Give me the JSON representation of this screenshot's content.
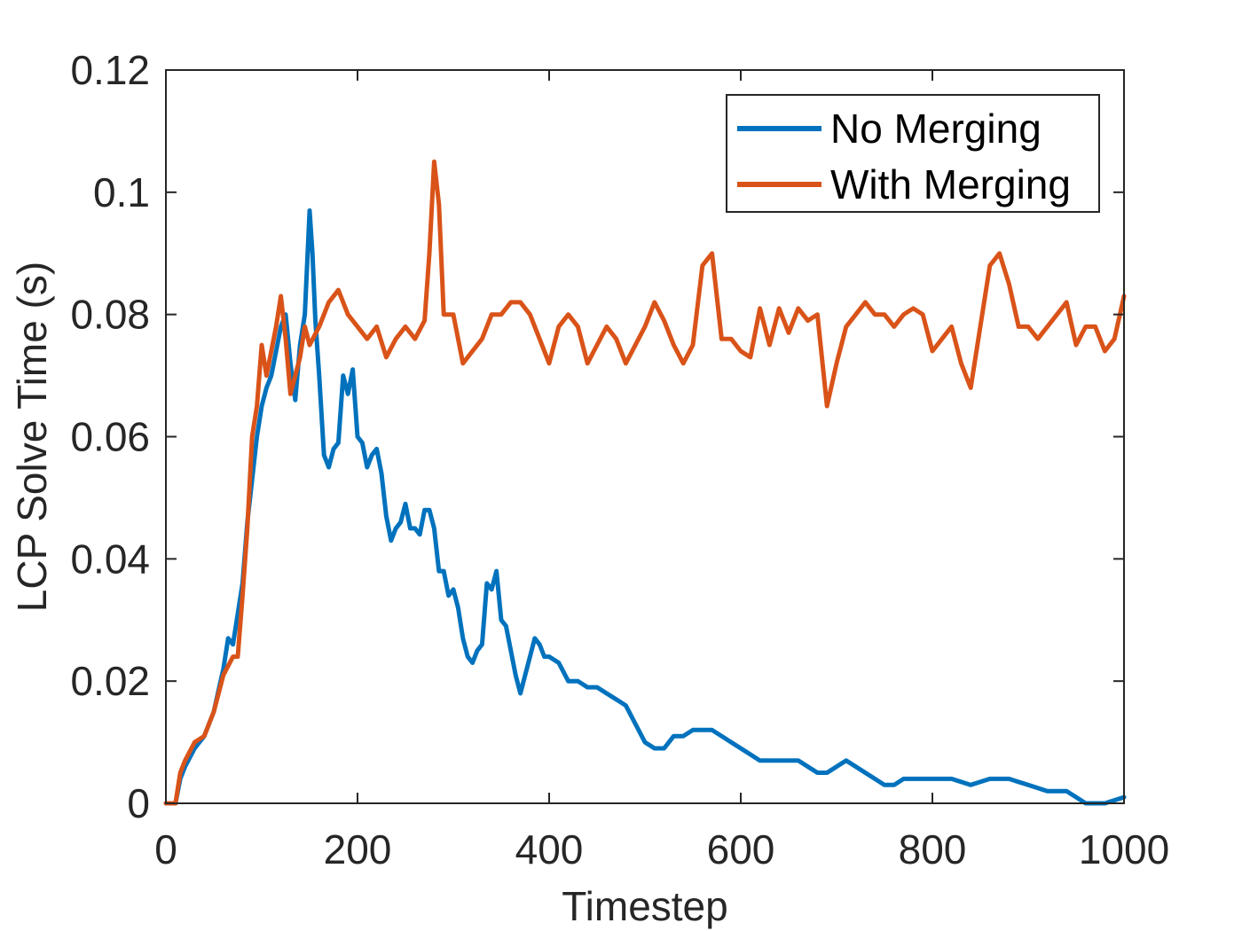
{
  "chart_data": {
    "type": "line",
    "xlabel": "Timestep",
    "ylabel": "LCP Solve Time (s)",
    "xlim": [
      0,
      1000
    ],
    "ylim": [
      0,
      0.12
    ],
    "xticks": [
      "0",
      "200",
      "400",
      "600",
      "800",
      "1000"
    ],
    "yticks": [
      "0",
      "0.02",
      "0.04",
      "0.06",
      "0.08",
      "0.1",
      "0.12"
    ],
    "grid": false,
    "legend_position": "top-right",
    "series": [
      {
        "name": "No Merging",
        "color": "#0072BD",
        "x": [
          0,
          10,
          15,
          20,
          30,
          40,
          50,
          60,
          65,
          70,
          75,
          80,
          85,
          90,
          95,
          100,
          105,
          110,
          115,
          120,
          125,
          130,
          135,
          140,
          145,
          150,
          153,
          156,
          160,
          165,
          170,
          175,
          180,
          185,
          190,
          195,
          200,
          205,
          210,
          215,
          220,
          225,
          230,
          235,
          240,
          245,
          250,
          255,
          260,
          265,
          270,
          275,
          280,
          285,
          290,
          295,
          300,
          305,
          310,
          315,
          320,
          325,
          330,
          335,
          340,
          345,
          350,
          355,
          360,
          365,
          370,
          375,
          380,
          385,
          390,
          395,
          400,
          410,
          420,
          430,
          440,
          450,
          460,
          470,
          480,
          490,
          500,
          510,
          520,
          530,
          540,
          550,
          560,
          570,
          580,
          590,
          600,
          610,
          620,
          630,
          640,
          650,
          660,
          670,
          680,
          690,
          700,
          710,
          720,
          730,
          740,
          750,
          760,
          770,
          780,
          790,
          800,
          820,
          840,
          860,
          880,
          900,
          920,
          940,
          960,
          980,
          1000
        ],
        "y": [
          0,
          0,
          0.004,
          0.006,
          0.009,
          0.011,
          0.015,
          0.022,
          0.027,
          0.026,
          0.031,
          0.036,
          0.046,
          0.053,
          0.06,
          0.065,
          0.068,
          0.07,
          0.074,
          0.078,
          0.08,
          0.072,
          0.066,
          0.075,
          0.08,
          0.097,
          0.09,
          0.079,
          0.07,
          0.057,
          0.055,
          0.058,
          0.059,
          0.07,
          0.067,
          0.071,
          0.06,
          0.059,
          0.055,
          0.057,
          0.058,
          0.054,
          0.047,
          0.043,
          0.045,
          0.046,
          0.049,
          0.045,
          0.045,
          0.044,
          0.048,
          0.048,
          0.045,
          0.038,
          0.038,
          0.034,
          0.035,
          0.032,
          0.027,
          0.024,
          0.023,
          0.025,
          0.026,
          0.036,
          0.035,
          0.038,
          0.03,
          0.029,
          0.025,
          0.021,
          0.018,
          0.021,
          0.024,
          0.027,
          0.026,
          0.024,
          0.024,
          0.023,
          0.02,
          0.02,
          0.019,
          0.019,
          0.018,
          0.017,
          0.016,
          0.013,
          0.01,
          0.009,
          0.009,
          0.011,
          0.011,
          0.012,
          0.012,
          0.012,
          0.011,
          0.01,
          0.009,
          0.008,
          0.007,
          0.007,
          0.007,
          0.007,
          0.007,
          0.006,
          0.005,
          0.005,
          0.006,
          0.007,
          0.006,
          0.005,
          0.004,
          0.003,
          0.003,
          0.004,
          0.004,
          0.004,
          0.004,
          0.004,
          0.003,
          0.004,
          0.004,
          0.003,
          0.002,
          0.002,
          0,
          0,
          0.001
        ]
      },
      {
        "name": "With Merging",
        "color": "#D95319",
        "x": [
          0,
          10,
          15,
          20,
          30,
          40,
          50,
          60,
          70,
          75,
          80,
          85,
          90,
          95,
          100,
          105,
          110,
          115,
          120,
          125,
          130,
          135,
          140,
          145,
          150,
          160,
          170,
          180,
          190,
          200,
          210,
          220,
          230,
          240,
          250,
          260,
          270,
          275,
          280,
          285,
          290,
          300,
          310,
          320,
          330,
          340,
          350,
          360,
          370,
          380,
          390,
          400,
          410,
          420,
          430,
          440,
          450,
          460,
          470,
          480,
          490,
          500,
          510,
          520,
          530,
          540,
          550,
          560,
          570,
          580,
          590,
          600,
          610,
          620,
          630,
          640,
          650,
          660,
          670,
          680,
          690,
          700,
          710,
          720,
          730,
          740,
          750,
          760,
          770,
          780,
          790,
          800,
          810,
          820,
          830,
          840,
          850,
          860,
          870,
          880,
          890,
          900,
          910,
          920,
          930,
          940,
          950,
          960,
          970,
          980,
          990,
          1000
        ],
        "y": [
          0,
          0,
          0.005,
          0.007,
          0.01,
          0.011,
          0.015,
          0.021,
          0.024,
          0.024,
          0.034,
          0.045,
          0.06,
          0.065,
          0.075,
          0.07,
          0.074,
          0.078,
          0.083,
          0.076,
          0.067,
          0.07,
          0.073,
          0.078,
          0.075,
          0.078,
          0.082,
          0.084,
          0.08,
          0.078,
          0.076,
          0.078,
          0.073,
          0.076,
          0.078,
          0.076,
          0.079,
          0.09,
          0.105,
          0.098,
          0.08,
          0.08,
          0.072,
          0.074,
          0.076,
          0.08,
          0.08,
          0.082,
          0.082,
          0.08,
          0.076,
          0.072,
          0.078,
          0.08,
          0.078,
          0.072,
          0.075,
          0.078,
          0.076,
          0.072,
          0.075,
          0.078,
          0.082,
          0.079,
          0.075,
          0.072,
          0.075,
          0.088,
          0.09,
          0.076,
          0.076,
          0.074,
          0.073,
          0.081,
          0.075,
          0.081,
          0.077,
          0.081,
          0.079,
          0.08,
          0.065,
          0.072,
          0.078,
          0.08,
          0.082,
          0.08,
          0.08,
          0.078,
          0.08,
          0.081,
          0.08,
          0.074,
          0.076,
          0.078,
          0.072,
          0.068,
          0.078,
          0.088,
          0.09,
          0.085,
          0.078,
          0.078,
          0.076,
          0.078,
          0.08,
          0.082,
          0.075,
          0.078,
          0.078,
          0.074,
          0.076,
          0.083
        ]
      }
    ]
  }
}
